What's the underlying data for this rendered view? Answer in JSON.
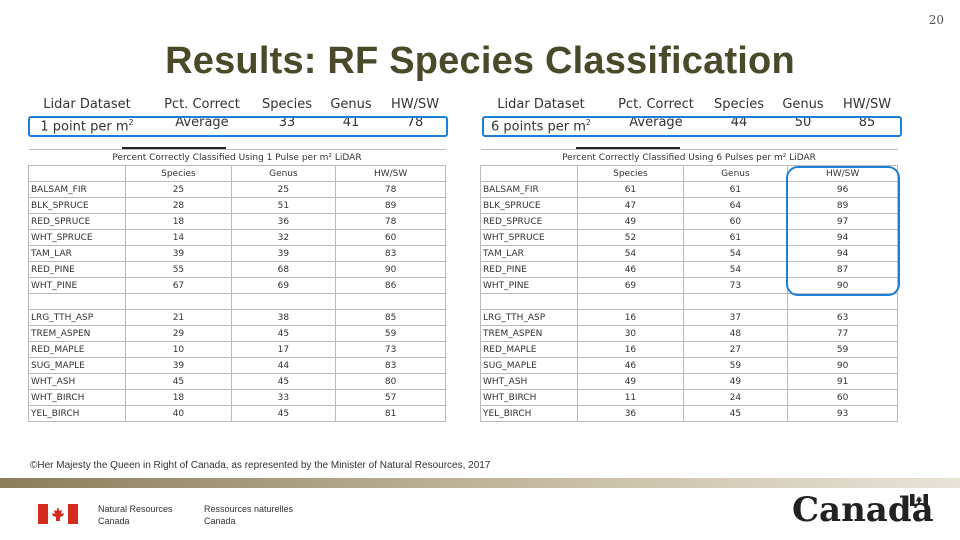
{
  "slide_number": "20",
  "title": "Results: RF Species Classification",
  "summaries": [
    {
      "dataset_header": "Lidar Dataset",
      "dataset_value": "1 point per m",
      "dataset_sup": "2",
      "pct_header": "Pct. Correct",
      "pct_value": "Average",
      "species_header": "Species",
      "species_value": "33",
      "genus_header": "Genus",
      "genus_value": "41",
      "hwsw_header": "HW/SW",
      "hwsw_value": "78"
    },
    {
      "dataset_header": "Lidar Dataset",
      "dataset_value": "6 points per m",
      "dataset_sup": "2",
      "pct_header": "Pct. Correct",
      "pct_value": "Average",
      "species_header": "Species",
      "species_value": "44",
      "genus_header": "Genus",
      "genus_value": "50",
      "hwsw_header": "HW/SW",
      "hwsw_value": "85"
    }
  ],
  "tables": [
    {
      "caption": "Percent Correctly Classified Using 1 Pulse per m² LiDAR",
      "columns": [
        "Species",
        "Genus",
        "HW/SW"
      ],
      "groups": [
        [
          [
            "BALSAM_FIR",
            "25",
            "25",
            "78"
          ],
          [
            "BLK_SPRUCE",
            "28",
            "51",
            "89"
          ],
          [
            "RED_SPRUCE",
            "18",
            "36",
            "78"
          ],
          [
            "WHT_SPRUCE",
            "14",
            "32",
            "60"
          ],
          [
            "TAM_LAR",
            "39",
            "39",
            "83"
          ],
          [
            "RED_PINE",
            "55",
            "68",
            "90"
          ],
          [
            "WHT_PINE",
            "67",
            "69",
            "86"
          ]
        ],
        [
          [
            "LRG_TTH_ASP",
            "21",
            "38",
            "85"
          ],
          [
            "TREM_ASPEN",
            "29",
            "45",
            "59"
          ],
          [
            "RED_MAPLE",
            "10",
            "17",
            "73"
          ],
          [
            "SUG_MAPLE",
            "39",
            "44",
            "83"
          ],
          [
            "WHT_ASH",
            "45",
            "45",
            "80"
          ],
          [
            "WHT_BIRCH",
            "18",
            "33",
            "57"
          ],
          [
            "YEL_BIRCH",
            "40",
            "45",
            "81"
          ]
        ]
      ]
    },
    {
      "caption": "Percent Correctly Classified Using 6 Pulses per m² LiDAR",
      "columns": [
        "Species",
        "Genus",
        "HW/SW"
      ],
      "groups": [
        [
          [
            "BALSAM_FIR",
            "61",
            "61",
            "96"
          ],
          [
            "BLK_SPRUCE",
            "47",
            "64",
            "89"
          ],
          [
            "RED_SPRUCE",
            "49",
            "60",
            "97"
          ],
          [
            "WHT_SPRUCE",
            "52",
            "61",
            "94"
          ],
          [
            "TAM_LAR",
            "54",
            "54",
            "94"
          ],
          [
            "RED_PINE",
            "46",
            "54",
            "87"
          ],
          [
            "WHT_PINE",
            "69",
            "73",
            "90"
          ]
        ],
        [
          [
            "LRG_TTH_ASP",
            "16",
            "37",
            "63"
          ],
          [
            "TREM_ASPEN",
            "30",
            "48",
            "77"
          ],
          [
            "RED_MAPLE",
            "16",
            "27",
            "59"
          ],
          [
            "SUG_MAPLE",
            "46",
            "59",
            "90"
          ],
          [
            "WHT_ASH",
            "49",
            "49",
            "91"
          ],
          [
            "WHT_BIRCH",
            "11",
            "24",
            "60"
          ],
          [
            "YEL_BIRCH",
            "36",
            "45",
            "93"
          ]
        ]
      ]
    }
  ],
  "copyright": "©Her Majesty the Queen in Right of Canada, as represented by the Minister of Natural Resources, 2017",
  "footer": {
    "dept_en_line1": "Natural Resources",
    "dept_en_line2": "Canada",
    "dept_fr_line1": "Ressources naturelles",
    "dept_fr_line2": "Canada",
    "wordmark": "Canada"
  },
  "colors": {
    "highlight": "#1e7fd6",
    "title": "#4a4a2a",
    "flag_red": "#d52b1e"
  }
}
